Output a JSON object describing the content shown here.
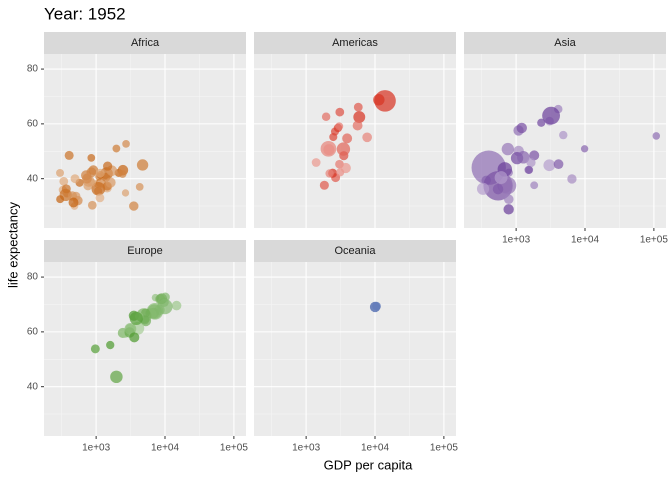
{
  "chart_data": {
    "type": "scatter",
    "title": "Year: 1952",
    "x_label": "GDP per capita",
    "y_label": "life expectancy",
    "log_x": true,
    "grid": true,
    "xlim": [
      175,
      150000
    ],
    "ylim": [
      22,
      85.5
    ],
    "xticks": [
      {
        "value": 1000,
        "label": "1e+03"
      },
      {
        "value": 10000,
        "label": "1e+04"
      },
      {
        "value": 100000,
        "label": "1e+05"
      }
    ],
    "yticks": [
      40,
      60,
      80
    ],
    "series": [
      {
        "name": "Africa",
        "color": "#c4620f",
        "x": [
          2449,
          3521,
          1063,
          851,
          543,
          339,
          1173,
          1071,
          1179,
          1103,
          781,
          2126,
          1389,
          2670,
          1419,
          375,
          329,
          362,
          4293,
          485,
          911,
          510,
          300,
          854,
          299,
          575,
          2388,
          1443,
          369,
          452,
          743,
          1968,
          1688,
          469,
          2424,
          761,
          1077,
          2719,
          493,
          1450,
          880,
          1136,
          4725,
          1615,
          1148,
          717,
          860,
          1469,
          735,
          1147,
          406
        ],
        "values": [
          43.1,
          30.0,
          38.2,
          47.6,
          32.0,
          39.0,
          38.5,
          35.5,
          38.1,
          40.7,
          39.1,
          42.1,
          40.5,
          34.8,
          41.9,
          34.5,
          35.9,
          34.1,
          37.0,
          30.0,
          43.1,
          33.6,
          32.5,
          42.3,
          42.1,
          38.5,
          42.7,
          36.7,
          36.3,
          33.7,
          40.5,
          51.0,
          42.9,
          31.3,
          41.7,
          37.4,
          36.3,
          52.7,
          40.0,
          37.3,
          30.3,
          33.0,
          45.0,
          38.6,
          41.4,
          41.2,
          38.6,
          44.6,
          40.0,
          42.0,
          48.5
        ],
        "sizes": [
          9.3,
          4.2,
          1.7,
          0.4,
          4.5,
          2.4,
          5.0,
          1.3,
          2.7,
          0.2,
          14.1,
          0.9,
          2.98,
          0.06,
          22.2,
          0.2,
          1.4,
          20.9,
          0.4,
          0.3,
          5.6,
          2.7,
          0.6,
          6.5,
          0.7,
          0.9,
          1.0,
          4.8,
          2.9,
          3.8,
          1.0,
          0.5,
          9.9,
          6.4,
          0.5,
          3.4,
          33.1,
          0.3,
          2.5,
          2.8,
          2.1,
          2.5,
          14.3,
          8.5,
          0.3,
          8.3,
          1.2,
          3.6,
          5.8,
          2.7,
          3.1
        ]
      },
      {
        "name": "Americas",
        "color": "#d7301f",
        "x": [
          5911,
          2677,
          2109,
          11367,
          3940,
          2144,
          2627,
          5587,
          1398,
          3522,
          3048,
          2428,
          1840,
          2195,
          2898,
          3478,
          3112,
          2480,
          1952,
          3759,
          3082,
          3023,
          13990,
          5717,
          7690
        ],
        "values": [
          62.5,
          40.4,
          50.9,
          68.8,
          54.7,
          50.6,
          57.2,
          59.4,
          45.9,
          48.4,
          45.3,
          42.0,
          37.6,
          41.9,
          58.5,
          50.8,
          42.3,
          55.2,
          62.6,
          43.9,
          64.3,
          59.1,
          68.4,
          66.1,
          55.1
        ],
        "sizes": [
          17.9,
          2.9,
          56.6,
          14.8,
          6.4,
          12.4,
          0.9,
          6.0,
          2.5,
          3.5,
          2.0,
          3.1,
          3.2,
          1.5,
          1.4,
          30.1,
          1.2,
          0.9,
          1.6,
          8.0,
          2.2,
          0.7,
          157.6,
          2.3,
          5.4
        ]
      },
      {
        "name": "Asia",
        "color": "#6a3d9a",
        "x": [
          779,
          9867,
          684,
          368,
          400,
          3054,
          547,
          750,
          3035,
          4130,
          4087,
          3217,
          1547,
          1088,
          1031,
          108382,
          4835,
          1831,
          786,
          331,
          546,
          1829,
          685,
          1273,
          6460,
          2316,
          1084,
          1644,
          1207,
          758,
          605,
          1516,
          782
        ],
        "values": [
          28.8,
          50.9,
          37.5,
          39.4,
          44.0,
          61.0,
          37.4,
          37.5,
          44.9,
          45.3,
          65.4,
          63.0,
          43.2,
          50.1,
          47.5,
          55.6,
          55.9,
          48.5,
          42.2,
          36.3,
          36.2,
          37.6,
          43.4,
          47.8,
          39.9,
          60.4,
          57.6,
          45.9,
          58.5,
          50.8,
          40.4,
          43.2,
          32.5
        ],
        "sizes": [
          8.4,
          0.1,
          46.9,
          4.7,
          556.3,
          2.1,
          372.0,
          82.1,
          17.3,
          5.4,
          1.6,
          86.5,
          0.6,
          8.9,
          20.9,
          0.2,
          1.4,
          6.7,
          0.8,
          20.1,
          9.2,
          0.5,
          41.3,
          22.4,
          4.0,
          1.1,
          7.98,
          3.7,
          8.6,
          21.3,
          26.2,
          1.0,
          4.96
        ]
      },
      {
        "name": "Europe",
        "color": "#4d9a2e",
        "x": [
          1601,
          6137,
          8343,
          974,
          2444,
          3119,
          6876,
          9692,
          6425,
          7030,
          7144,
          3531,
          5264,
          7268,
          5211,
          4931,
          2648,
          8942,
          10095,
          4029,
          3068,
          3145,
          3581,
          5074,
          4215,
          3834,
          8528,
          14734,
          1969,
          9980
        ],
        "values": [
          55.2,
          66.8,
          68.0,
          53.8,
          59.6,
          61.2,
          66.9,
          70.8,
          66.6,
          67.4,
          67.5,
          65.9,
          64.0,
          72.5,
          66.9,
          65.9,
          59.2,
          72.1,
          72.7,
          61.3,
          59.8,
          61.1,
          58.0,
          64.4,
          65.6,
          64.9,
          71.9,
          69.6,
          43.6,
          69.2
        ],
        "sizes": [
          1.3,
          6.9,
          8.7,
          2.8,
          7.3,
          3.9,
          9.1,
          4.3,
          4.1,
          42.5,
          69.1,
          7.7,
          9.5,
          0.15,
          2.95,
          47.7,
          0.4,
          10.4,
          3.3,
          25.7,
          8.5,
          16.6,
          6.9,
          3.6,
          1.5,
          28.5,
          7.1,
          4.8,
          22.2,
          50.4
        ]
      },
      {
        "name": "Oceania",
        "color": "#3a5aa8",
        "x": [
          10040,
          10557
        ],
        "values": [
          69.1,
          69.4
        ],
        "sizes": [
          8.7,
          1.99
        ]
      }
    ]
  }
}
